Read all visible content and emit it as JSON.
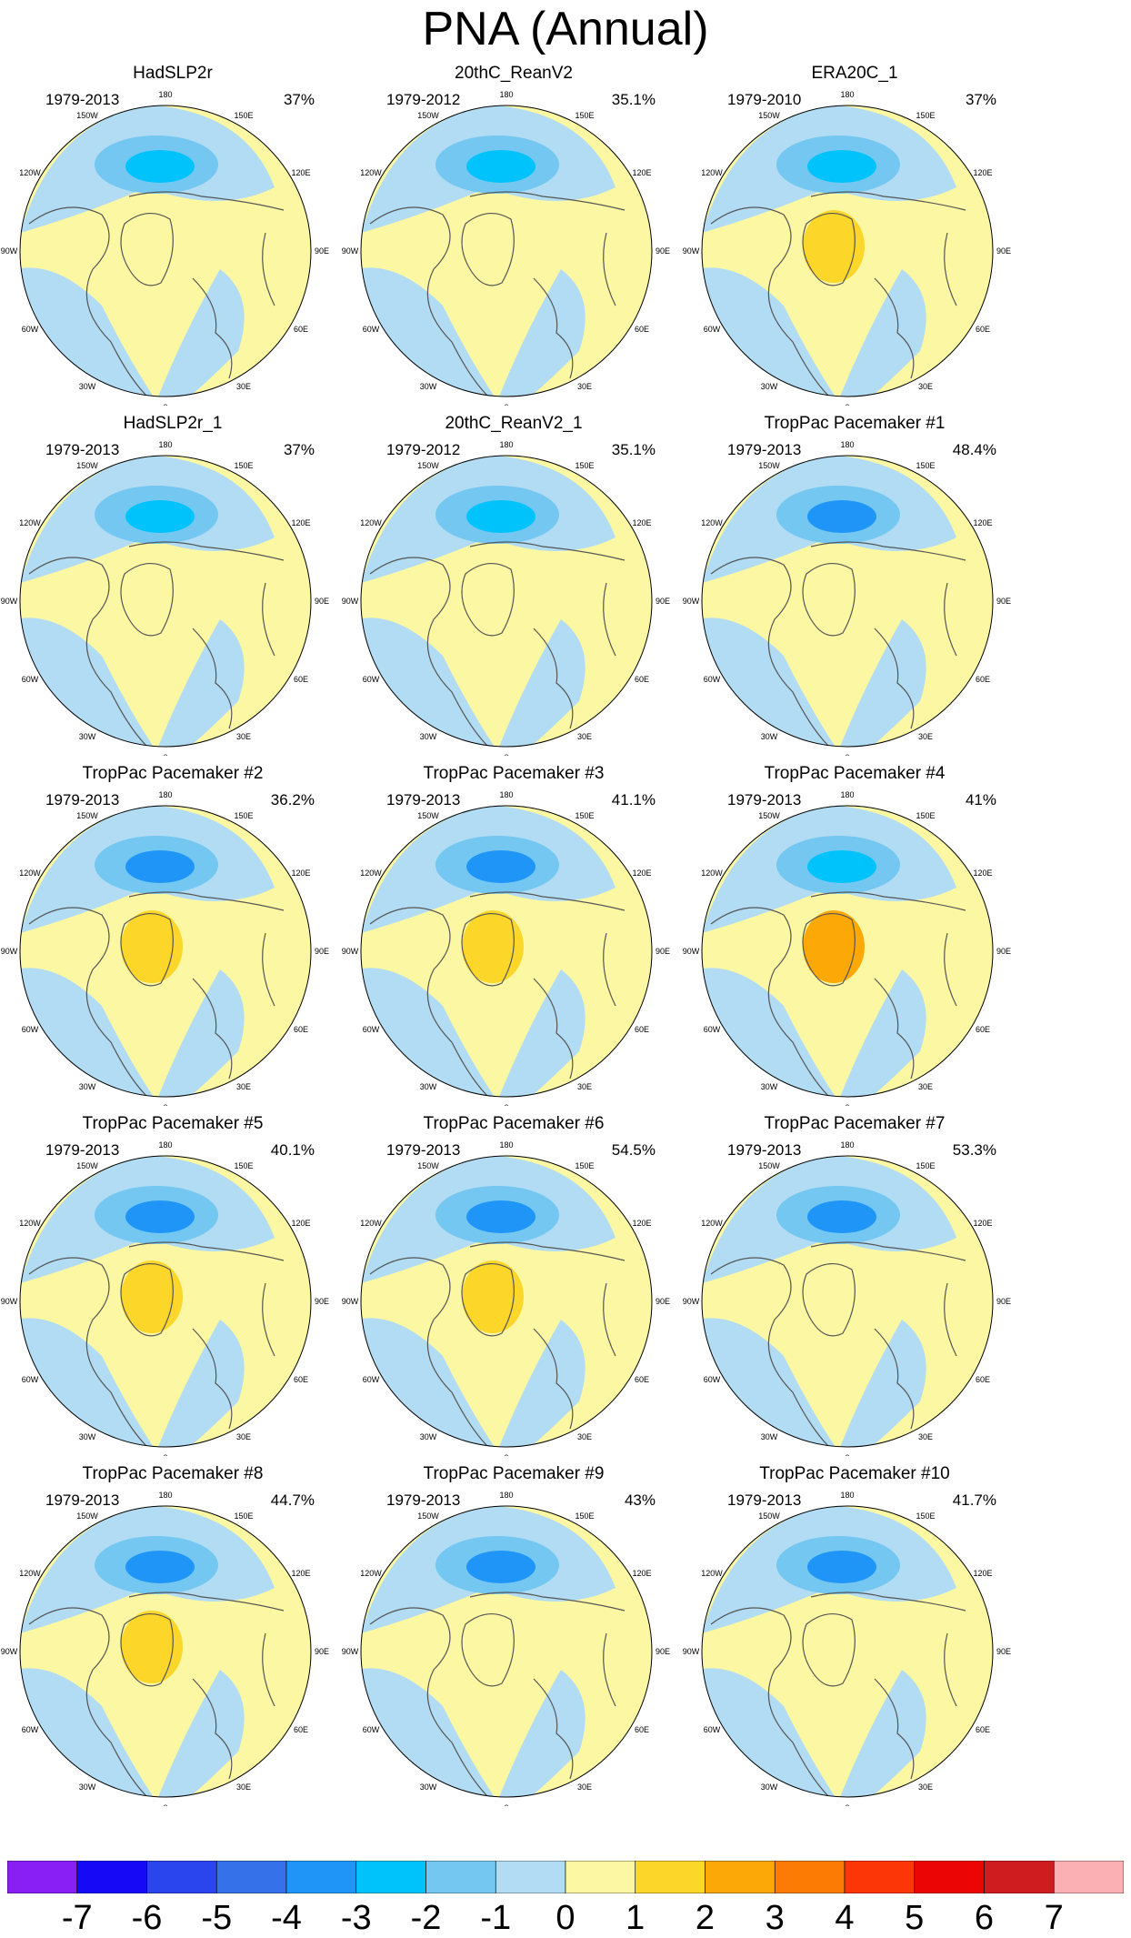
{
  "title": "PNA (Annual)",
  "longitude_labels": [
    "180",
    "150E",
    "120E",
    "90E",
    "60E",
    "30E",
    "0",
    "30W",
    "60W",
    "90W",
    "120W",
    "150W"
  ],
  "panels": [
    {
      "title": "HadSLP2r",
      "period": "1979-2013",
      "percent": "37%",
      "center_value": -2.5,
      "greenland_value": 0.5
    },
    {
      "title": "20thC_ReanV2",
      "period": "1979-2012",
      "percent": "35.1%",
      "center_value": -2.5,
      "greenland_value": 0.5
    },
    {
      "title": "ERA20C_1",
      "period": "1979-2010",
      "percent": "37%",
      "center_value": -2.5,
      "greenland_value": 1.5
    },
    {
      "title": "HadSLP2r_1",
      "period": "1979-2013",
      "percent": "37%",
      "center_value": -2.5,
      "greenland_value": 0.5
    },
    {
      "title": "20thC_ReanV2_1",
      "period": "1979-2012",
      "percent": "35.1%",
      "center_value": -2.5,
      "greenland_value": 0.5
    },
    {
      "title": "TropPac Pacemaker #1",
      "period": "1979-2013",
      "percent": "48.4%",
      "center_value": -3.5,
      "greenland_value": 0.5
    },
    {
      "title": "TropPac Pacemaker #2",
      "period": "1979-2013",
      "percent": "36.2%",
      "center_value": -3.5,
      "greenland_value": 1.5
    },
    {
      "title": "TropPac Pacemaker #3",
      "period": "1979-2013",
      "percent": "41.1%",
      "center_value": -3.5,
      "greenland_value": 1.5
    },
    {
      "title": "TropPac Pacemaker #4",
      "period": "1979-2013",
      "percent": "41%",
      "center_value": -2.5,
      "greenland_value": 2.5
    },
    {
      "title": "TropPac Pacemaker #5",
      "period": "1979-2013",
      "percent": "40.1%",
      "center_value": -3.5,
      "greenland_value": 1.5
    },
    {
      "title": "TropPac Pacemaker #6",
      "period": "1979-2013",
      "percent": "54.5%",
      "center_value": -3.5,
      "greenland_value": 1.5
    },
    {
      "title": "TropPac Pacemaker #7",
      "period": "1979-2013",
      "percent": "53.3%",
      "center_value": -3.5,
      "greenland_value": 0.5
    },
    {
      "title": "TropPac Pacemaker #8",
      "period": "1979-2013",
      "percent": "44.7%",
      "center_value": -3.5,
      "greenland_value": 1.5
    },
    {
      "title": "TropPac Pacemaker #9",
      "period": "1979-2013",
      "percent": "43%",
      "center_value": -3.5,
      "greenland_value": 0.5
    },
    {
      "title": "TropPac Pacemaker #10",
      "period": "1979-2013",
      "percent": "41.7%",
      "center_value": -3.5,
      "greenland_value": 0.5
    }
  ],
  "colorbar": {
    "labels": [
      "-7",
      "-6",
      "-5",
      "-4",
      "-3",
      "-2",
      "-1",
      "0",
      "1",
      "2",
      "3",
      "4",
      "5",
      "6",
      "7"
    ],
    "colors": [
      "#8a1ff5",
      "#1609f5",
      "#2b45ee",
      "#3572ea",
      "#1f96f7",
      "#00c3fc",
      "#74c7f0",
      "#b1dcf3",
      "#fcf7a3",
      "#fcd629",
      "#fca806",
      "#fc7b05",
      "#fc3607",
      "#ec0505",
      "#cf1c1f",
      "#fbb1b3"
    ]
  }
}
